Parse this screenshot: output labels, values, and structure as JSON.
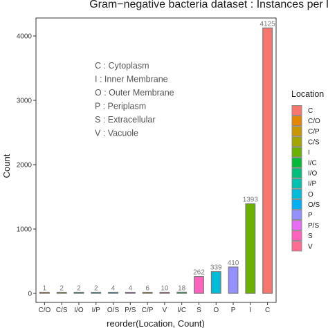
{
  "chart_data": {
    "type": "bar",
    "title": "Gram−negative bacteria dataset : Instances per label set",
    "xlabel": "reorder(Location, Count)",
    "ylabel": "Count",
    "ylim": [
      0,
      4300
    ],
    "yticks": [
      0,
      1000,
      2000,
      3000,
      4000
    ],
    "grid": false,
    "legend_position": "right",
    "categories": [
      "C/O",
      "C/S",
      "I/O",
      "I/P",
      "O/S",
      "P/S",
      "C/P",
      "V",
      "I/C",
      "S",
      "O",
      "P",
      "I",
      "C"
    ],
    "values": [
      1,
      2,
      2,
      2,
      4,
      4,
      6,
      10,
      18,
      262,
      339,
      410,
      1393,
      4125
    ],
    "annotations": [
      "C : Cytoplasm",
      "I : Inner Membrane",
      "O : Outer Membrane",
      "P : Periplasm",
      "S : Extracellular",
      "V : Vacuole"
    ]
  },
  "legend": {
    "title": "Location",
    "items": [
      {
        "label": "C",
        "color": "#F8766D"
      },
      {
        "label": "C/O",
        "color": "#E58700"
      },
      {
        "label": "C/P",
        "color": "#C99800"
      },
      {
        "label": "C/S",
        "color": "#A3A500"
      },
      {
        "label": "I",
        "color": "#6BB100"
      },
      {
        "label": "I/C",
        "color": "#00BA38"
      },
      {
        "label": "I/O",
        "color": "#00BF7D"
      },
      {
        "label": "I/P",
        "color": "#00C0AF"
      },
      {
        "label": "O",
        "color": "#00BCD8"
      },
      {
        "label": "O/S",
        "color": "#00B0F6"
      },
      {
        "label": "P",
        "color": "#9590FF"
      },
      {
        "label": "P/S",
        "color": "#E76BF3"
      },
      {
        "label": "S",
        "color": "#FF62BC"
      },
      {
        "label": "V",
        "color": "#FF6C91"
      }
    ]
  }
}
